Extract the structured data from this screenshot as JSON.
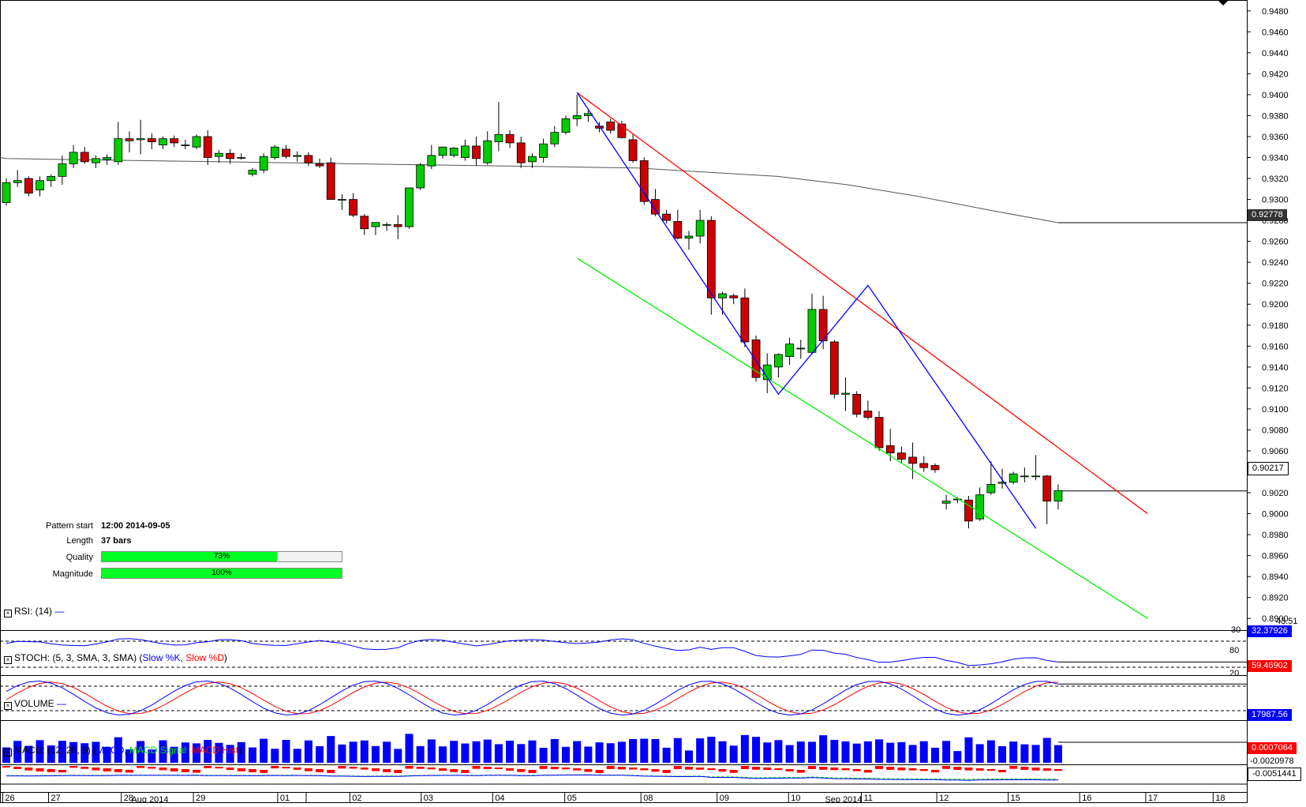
{
  "chart_data": [
    {
      "type": "candlestick",
      "title": "",
      "price_axis": {
        "min": 0.889,
        "max": 0.949,
        "ticks": [
          "0.9480",
          "0.9460",
          "0.9440",
          "0.9420",
          "0.9400",
          "0.9380",
          "0.9360",
          "0.9340",
          "0.9320",
          "0.9300",
          "0.9280",
          "0.9260",
          "0.9240",
          "0.9220",
          "0.9200",
          "0.9180",
          "0.9160",
          "0.9140",
          "0.9120",
          "0.9100",
          "0.9080",
          "0.9060",
          "0.9040",
          "0.9020",
          "0.9000",
          "0.8980",
          "0.8960",
          "0.8940",
          "0.8920",
          "0.8900"
        ]
      },
      "candles": [
        {
          "o": 0.9297,
          "h": 0.932,
          "l": 0.9294,
          "c": 0.9316
        },
        {
          "o": 0.9316,
          "h": 0.9328,
          "l": 0.9312,
          "c": 0.9318
        },
        {
          "o": 0.932,
          "h": 0.9322,
          "l": 0.9303,
          "c": 0.9306
        },
        {
          "o": 0.9309,
          "h": 0.9322,
          "l": 0.9303,
          "c": 0.9318
        },
        {
          "o": 0.9318,
          "h": 0.9324,
          "l": 0.9312,
          "c": 0.9322
        },
        {
          "o": 0.9322,
          "h": 0.9342,
          "l": 0.9314,
          "c": 0.9334
        },
        {
          "o": 0.9334,
          "h": 0.9352,
          "l": 0.933,
          "c": 0.9345
        },
        {
          "o": 0.9345,
          "h": 0.935,
          "l": 0.9334,
          "c": 0.9336
        },
        {
          "o": 0.9335,
          "h": 0.9342,
          "l": 0.933,
          "c": 0.9339
        },
        {
          "o": 0.9338,
          "h": 0.9343,
          "l": 0.9333,
          "c": 0.934
        },
        {
          "o": 0.9336,
          "h": 0.9374,
          "l": 0.9333,
          "c": 0.9358
        },
        {
          "o": 0.9358,
          "h": 0.9365,
          "l": 0.9345,
          "c": 0.9356
        },
        {
          "o": 0.9357,
          "h": 0.9376,
          "l": 0.9343,
          "c": 0.9358
        },
        {
          "o": 0.9358,
          "h": 0.9363,
          "l": 0.9348,
          "c": 0.9355
        },
        {
          "o": 0.9352,
          "h": 0.936,
          "l": 0.9348,
          "c": 0.9358
        },
        {
          "o": 0.9358,
          "h": 0.9361,
          "l": 0.935,
          "c": 0.9354
        },
        {
          "o": 0.9352,
          "h": 0.9357,
          "l": 0.9348,
          "c": 0.9352
        },
        {
          "o": 0.935,
          "h": 0.9362,
          "l": 0.9348,
          "c": 0.936
        },
        {
          "o": 0.936,
          "h": 0.9366,
          "l": 0.9333,
          "c": 0.934
        },
        {
          "o": 0.9341,
          "h": 0.9347,
          "l": 0.9335,
          "c": 0.9344
        },
        {
          "o": 0.9344,
          "h": 0.9348,
          "l": 0.9334,
          "c": 0.9339
        },
        {
          "o": 0.934,
          "h": 0.9344,
          "l": 0.9338,
          "c": 0.934
        },
        {
          "o": 0.9324,
          "h": 0.933,
          "l": 0.9322,
          "c": 0.9328
        },
        {
          "o": 0.9328,
          "h": 0.9344,
          "l": 0.9325,
          "c": 0.9341
        },
        {
          "o": 0.934,
          "h": 0.9352,
          "l": 0.9338,
          "c": 0.935
        },
        {
          "o": 0.9348,
          "h": 0.9352,
          "l": 0.9339,
          "c": 0.9341
        },
        {
          "o": 0.9341,
          "h": 0.9346,
          "l": 0.9336,
          "c": 0.9342
        },
        {
          "o": 0.9342,
          "h": 0.9345,
          "l": 0.9332,
          "c": 0.9335
        },
        {
          "o": 0.9334,
          "h": 0.9339,
          "l": 0.933,
          "c": 0.9332
        },
        {
          "o": 0.9335,
          "h": 0.934,
          "l": 0.93,
          "c": 0.93
        },
        {
          "o": 0.93,
          "h": 0.9305,
          "l": 0.929,
          "c": 0.93
        },
        {
          "o": 0.93,
          "h": 0.9306,
          "l": 0.9283,
          "c": 0.9285
        },
        {
          "o": 0.9284,
          "h": 0.9286,
          "l": 0.9266,
          "c": 0.9272
        },
        {
          "o": 0.9274,
          "h": 0.9277,
          "l": 0.9266,
          "c": 0.9278
        },
        {
          "o": 0.9276,
          "h": 0.9278,
          "l": 0.927,
          "c": 0.9276
        },
        {
          "o": 0.9276,
          "h": 0.9285,
          "l": 0.9262,
          "c": 0.9274
        },
        {
          "o": 0.9274,
          "h": 0.9311,
          "l": 0.9272,
          "c": 0.9311
        },
        {
          "o": 0.9311,
          "h": 0.9335,
          "l": 0.9309,
          "c": 0.9333
        },
        {
          "o": 0.9332,
          "h": 0.9352,
          "l": 0.9329,
          "c": 0.9342
        },
        {
          "o": 0.9342,
          "h": 0.935,
          "l": 0.9339,
          "c": 0.935
        },
        {
          "o": 0.9342,
          "h": 0.935,
          "l": 0.934,
          "c": 0.9349
        },
        {
          "o": 0.934,
          "h": 0.9357,
          "l": 0.9337,
          "c": 0.9351
        },
        {
          "o": 0.9351,
          "h": 0.936,
          "l": 0.9332,
          "c": 0.9339
        },
        {
          "o": 0.9335,
          "h": 0.9365,
          "l": 0.9333,
          "c": 0.9356
        },
        {
          "o": 0.9355,
          "h": 0.9393,
          "l": 0.9346,
          "c": 0.9362
        },
        {
          "o": 0.9362,
          "h": 0.9366,
          "l": 0.9349,
          "c": 0.9354
        },
        {
          "o": 0.9354,
          "h": 0.936,
          "l": 0.933,
          "c": 0.9335
        },
        {
          "o": 0.9336,
          "h": 0.9344,
          "l": 0.933,
          "c": 0.9341
        },
        {
          "o": 0.934,
          "h": 0.9358,
          "l": 0.9335,
          "c": 0.9353
        },
        {
          "o": 0.9353,
          "h": 0.937,
          "l": 0.935,
          "c": 0.9364
        },
        {
          "o": 0.9364,
          "h": 0.938,
          "l": 0.9362,
          "c": 0.9377
        },
        {
          "o": 0.9377,
          "h": 0.94,
          "l": 0.937,
          "c": 0.938
        },
        {
          "o": 0.938,
          "h": 0.9385,
          "l": 0.9374,
          "c": 0.9382
        },
        {
          "o": 0.937,
          "h": 0.9374,
          "l": 0.9364,
          "c": 0.9368
        },
        {
          "o": 0.9374,
          "h": 0.9377,
          "l": 0.9363,
          "c": 0.9366
        },
        {
          "o": 0.9372,
          "h": 0.9375,
          "l": 0.9358,
          "c": 0.9359
        },
        {
          "o": 0.9357,
          "h": 0.9362,
          "l": 0.9335,
          "c": 0.9337
        },
        {
          "o": 0.9337,
          "h": 0.934,
          "l": 0.9295,
          "c": 0.9298
        },
        {
          "o": 0.93,
          "h": 0.931,
          "l": 0.9284,
          "c": 0.9286
        },
        {
          "o": 0.9286,
          "h": 0.929,
          "l": 0.9277,
          "c": 0.928
        },
        {
          "o": 0.9279,
          "h": 0.929,
          "l": 0.9262,
          "c": 0.9263
        },
        {
          "o": 0.9263,
          "h": 0.927,
          "l": 0.9252,
          "c": 0.9265
        },
        {
          "o": 0.9265,
          "h": 0.929,
          "l": 0.9258,
          "c": 0.928
        },
        {
          "o": 0.928,
          "h": 0.9284,
          "l": 0.919,
          "c": 0.9206
        },
        {
          "o": 0.9206,
          "h": 0.9212,
          "l": 0.919,
          "c": 0.921
        },
        {
          "o": 0.9208,
          "h": 0.921,
          "l": 0.92,
          "c": 0.9206
        },
        {
          "o": 0.9206,
          "h": 0.9215,
          "l": 0.9159,
          "c": 0.9164
        },
        {
          "o": 0.9166,
          "h": 0.917,
          "l": 0.9126,
          "c": 0.913
        },
        {
          "o": 0.9128,
          "h": 0.9153,
          "l": 0.9115,
          "c": 0.9142
        },
        {
          "o": 0.914,
          "h": 0.9153,
          "l": 0.913,
          "c": 0.9152
        },
        {
          "o": 0.915,
          "h": 0.9168,
          "l": 0.9142,
          "c": 0.9162
        },
        {
          "o": 0.9158,
          "h": 0.9166,
          "l": 0.9148,
          "c": 0.9158
        },
        {
          "o": 0.9154,
          "h": 0.921,
          "l": 0.9152,
          "c": 0.9195
        },
        {
          "o": 0.9195,
          "h": 0.9208,
          "l": 0.9157,
          "c": 0.9165
        },
        {
          "o": 0.9164,
          "h": 0.9166,
          "l": 0.911,
          "c": 0.9114
        },
        {
          "o": 0.9114,
          "h": 0.913,
          "l": 0.9098,
          "c": 0.9115
        },
        {
          "o": 0.9114,
          "h": 0.9117,
          "l": 0.9092,
          "c": 0.9095
        },
        {
          "o": 0.9098,
          "h": 0.9108,
          "l": 0.909,
          "c": 0.9092
        },
        {
          "o": 0.9092,
          "h": 0.9098,
          "l": 0.906,
          "c": 0.9063
        },
        {
          "o": 0.9065,
          "h": 0.9081,
          "l": 0.905,
          "c": 0.9058
        },
        {
          "o": 0.9058,
          "h": 0.9064,
          "l": 0.9048,
          "c": 0.9052
        },
        {
          "o": 0.9054,
          "h": 0.9068,
          "l": 0.9033,
          "c": 0.9048
        },
        {
          "o": 0.9048,
          "h": 0.9055,
          "l": 0.904,
          "c": 0.9044
        },
        {
          "o": 0.9046,
          "h": 0.9048,
          "l": 0.9039,
          "c": 0.9042
        },
        {
          "o": 0.901,
          "h": 0.9018,
          "l": 0.9004,
          "c": 0.9012
        },
        {
          "o": 0.9014,
          "h": 0.9016,
          "l": 0.901,
          "c": 0.9014
        },
        {
          "o": 0.9013,
          "h": 0.9017,
          "l": 0.8986,
          "c": 0.8993
        },
        {
          "o": 0.8995,
          "h": 0.9025,
          "l": 0.8993,
          "c": 0.9018
        },
        {
          "o": 0.902,
          "h": 0.905,
          "l": 0.9018,
          "c": 0.9028
        },
        {
          "o": 0.9029,
          "h": 0.9043,
          "l": 0.9024,
          "c": 0.903
        },
        {
          "o": 0.903,
          "h": 0.904,
          "l": 0.9028,
          "c": 0.9038
        },
        {
          "o": 0.9036,
          "h": 0.9044,
          "l": 0.903,
          "c": 0.9036
        },
        {
          "o": 0.9036,
          "h": 0.9056,
          "l": 0.9032,
          "c": 0.9036
        },
        {
          "o": 0.9036,
          "h": 0.9037,
          "l": 0.899,
          "c": 0.9012
        },
        {
          "o": 0.9012,
          "h": 0.9028,
          "l": 0.9004,
          "c": 0.9022
        }
      ],
      "moving_average_price": 0.92778,
      "last_price": 0.90217,
      "trendlines": [
        {
          "name": "resistance",
          "color": "#ff0000",
          "from": [
            51,
            0.9402
          ],
          "to": [
            102,
            0.9
          ]
        },
        {
          "name": "support",
          "color": "#00ee00",
          "from": [
            51,
            0.9244
          ],
          "to": [
            102,
            0.89
          ]
        },
        {
          "name": "zigzag",
          "color": "#0000ff",
          "points": [
            [
              51,
              0.9402
            ],
            [
              69,
              0.9114
            ],
            [
              77,
              0.9218
            ],
            [
              92,
              0.8986
            ]
          ]
        }
      ]
    }
  ],
  "pattern_info": {
    "start_label": "Pattern start",
    "start_value": "12:00 2014-09-05",
    "length_label": "Length",
    "length_value": "37 bars",
    "quality_label": "Quality",
    "quality_value": "73%",
    "quality_fraction": 0.73,
    "magnitude_label": "Magnitude",
    "magnitude_value": "100%",
    "magnitude_fraction": 1.0
  },
  "price_tags": {
    "ma": "0.92778",
    "last": "0.90217"
  },
  "rsi": {
    "title": "RSI: (14)",
    "legend_line": "—",
    "level_30": "30",
    "level_partial": "43.51",
    "value": "32.37926"
  },
  "stoch": {
    "title_prefix": "STOCH: (5, 3, SMA, 3, SMA) (",
    "k_label": "Slow %K",
    "sep": ", ",
    "d_label": "Slow %D",
    "title_suffix": ")",
    "level_80": "80",
    "level_20": "20",
    "value": "59.46902"
  },
  "volume": {
    "title": "VOLUME",
    "legend_line": "—",
    "value": "17987.56"
  },
  "macd": {
    "title_prefix": "MACD: (12, 26, 9) (",
    "line_label": "MACD",
    "sep": ", ",
    "signal_label": "MACD Signal",
    "hist_label": "MACD Hist",
    "title_suffix": ")",
    "value_hist": "0.0007064",
    "value_mid": "-0.0020978",
    "value_macd": "-0.0051441"
  },
  "x_axis": {
    "days": [
      "26",
      "27",
      "28",
      "29",
      "01",
      "02",
      "03",
      "04",
      "05",
      "08",
      "09",
      "10",
      "11",
      "12",
      "15",
      "16",
      "17",
      "18"
    ],
    "months": [
      "Aug 2014",
      "Sep 2014"
    ]
  },
  "colors": {
    "bull": "#00cc00",
    "bear": "#cc0000",
    "ma": "#555555",
    "rsi": "#0000ff",
    "stoch_k": "#0000ff",
    "stoch_d": "#ff0000",
    "volume": "#0000ff",
    "macd_hist": "#ff0000",
    "macd_signal": "#00dd00",
    "macd_line": "#0000ff"
  },
  "icons": {
    "corner": "dropdown-arrow-icon",
    "panel_box": "close-box-icon"
  }
}
